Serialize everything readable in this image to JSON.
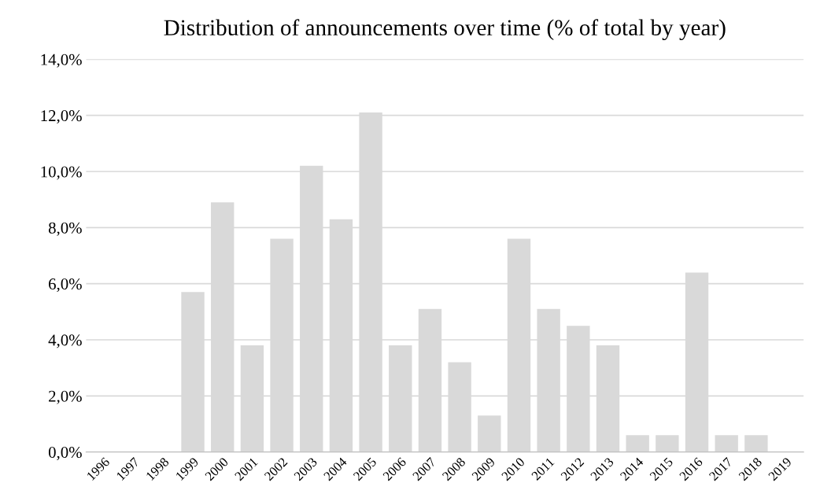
{
  "chart_data": {
    "type": "bar",
    "title": "Distribution of announcements over time (% of total by year)",
    "categories": [
      "1996",
      "1997",
      "1998",
      "1999",
      "2000",
      "2001",
      "2002",
      "2003",
      "2004",
      "2005",
      "2006",
      "2007",
      "2008",
      "2009",
      "2010",
      "2011",
      "2012",
      "2013",
      "2014",
      "2015",
      "2016",
      "2017",
      "2018",
      "2019"
    ],
    "values": [
      0,
      0,
      0,
      5.7,
      8.9,
      3.8,
      7.6,
      10.2,
      8.3,
      12.1,
      3.8,
      5.1,
      3.2,
      1.3,
      7.6,
      5.1,
      4.5,
      3.8,
      0.6,
      0.6,
      6.4,
      0.6,
      0.6,
      0
    ],
    "color": "#d9d9d9",
    "ylim": [
      0,
      14
    ],
    "yticks": [
      {
        "value": 0,
        "label": "0,0%"
      },
      {
        "value": 2,
        "label": "2,0%"
      },
      {
        "value": 4,
        "label": "4,0%"
      },
      {
        "value": 6,
        "label": "6,0%"
      },
      {
        "value": 8,
        "label": "8,0%"
      },
      {
        "value": 10,
        "label": "10,0%"
      },
      {
        "value": 12,
        "label": "12,0%"
      },
      {
        "value": 14,
        "label": "14,0%"
      }
    ],
    "grid": "y",
    "legend": false
  }
}
